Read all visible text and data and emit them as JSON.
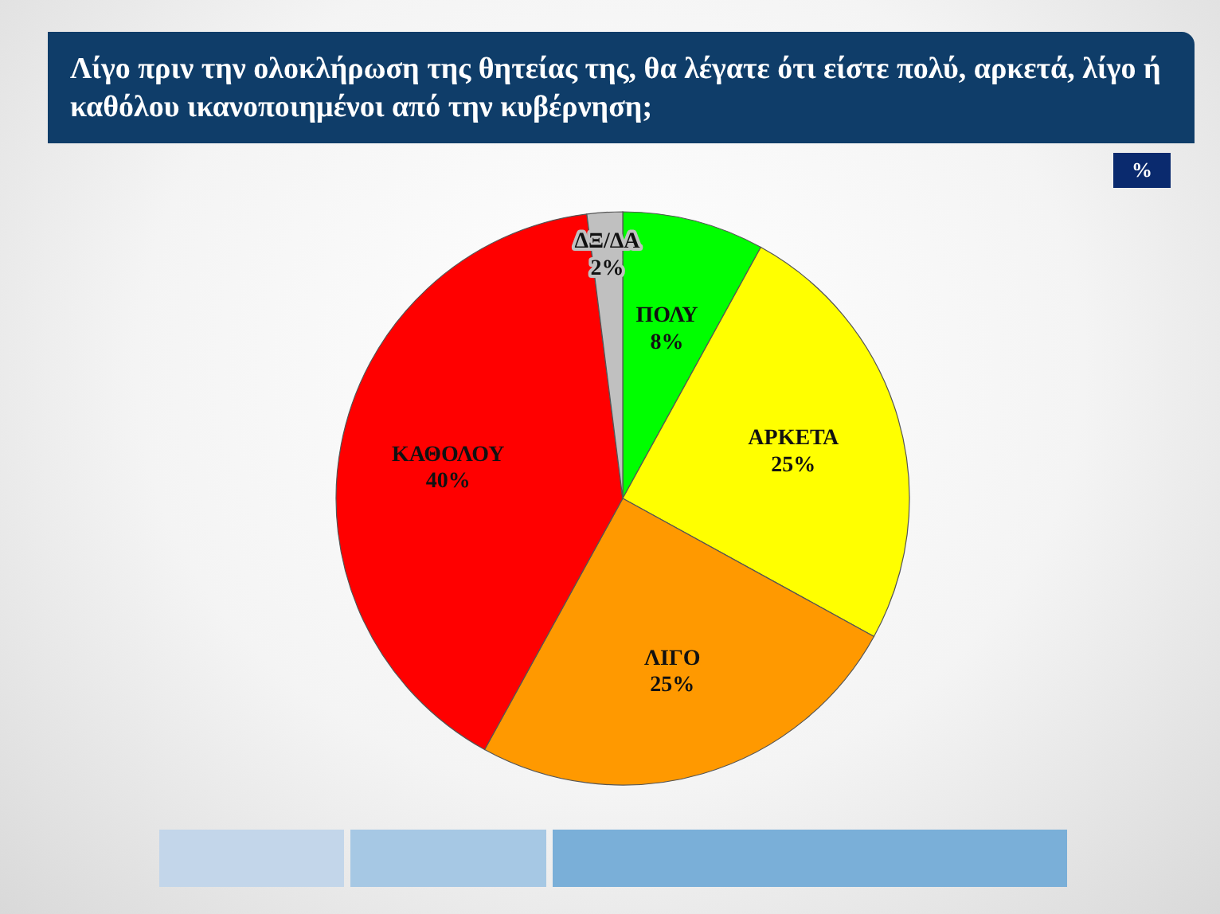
{
  "chart_data": {
    "type": "pie",
    "title": "Λίγο πριν την ολοκλήρωση της θητείας της, θα λέγατε ότι είστε πολύ, αρκετά, λίγο ή καθόλου ικανοποιημένοι από την κυβέρνηση;",
    "categories": [
      "ΠΟΛΥ",
      "ΑΡΚΕΤΑ",
      "ΛΙΓΟ",
      "ΚΑΘΟΛΟΥ",
      "ΔΞ/ΔΑ"
    ],
    "values": [
      8,
      25,
      25,
      40,
      2
    ],
    "colors": [
      "#00ff00",
      "#ffff00",
      "#ff9900",
      "#ff0000",
      "#c0c0c0"
    ],
    "value_labels": [
      "8%",
      "25%",
      "25%",
      "40%",
      "2%"
    ],
    "annotations": [
      "%"
    ]
  }
}
